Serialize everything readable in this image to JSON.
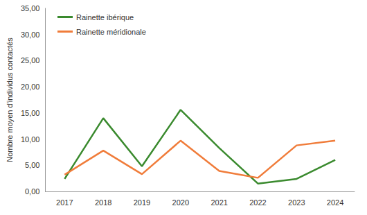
{
  "chart_data": {
    "type": "line",
    "ylabel": "Nombre moyen d'individus contactés",
    "categories": [
      "2017",
      "2018",
      "2019",
      "2020",
      "2021",
      "2022",
      "2023",
      "2024"
    ],
    "series": [
      {
        "name": "Rainette ibérique",
        "color": "#3a8a2e",
        "values": [
          2.4,
          14.0,
          4.8,
          15.6,
          8.3,
          1.5,
          2.4,
          6.0
        ]
      },
      {
        "name": "Rainette méridionale",
        "color": "#f07c3a",
        "values": [
          3.2,
          7.8,
          3.3,
          9.7,
          3.9,
          2.6,
          8.8,
          9.7
        ]
      }
    ],
    "ylim": [
      0,
      35
    ],
    "yticks": [
      {
        "value": 0,
        "label": "0,00"
      },
      {
        "value": 5,
        "label": "5,00"
      },
      {
        "value": 10,
        "label": "10,00"
      },
      {
        "value": 15,
        "label": "15,00"
      },
      {
        "value": 20,
        "label": "20,00"
      },
      {
        "value": 25,
        "label": "25,00"
      },
      {
        "value": 30,
        "label": "30,00"
      },
      {
        "value": 35,
        "label": "35,00"
      }
    ],
    "grid": false,
    "legend": "top-left"
  }
}
